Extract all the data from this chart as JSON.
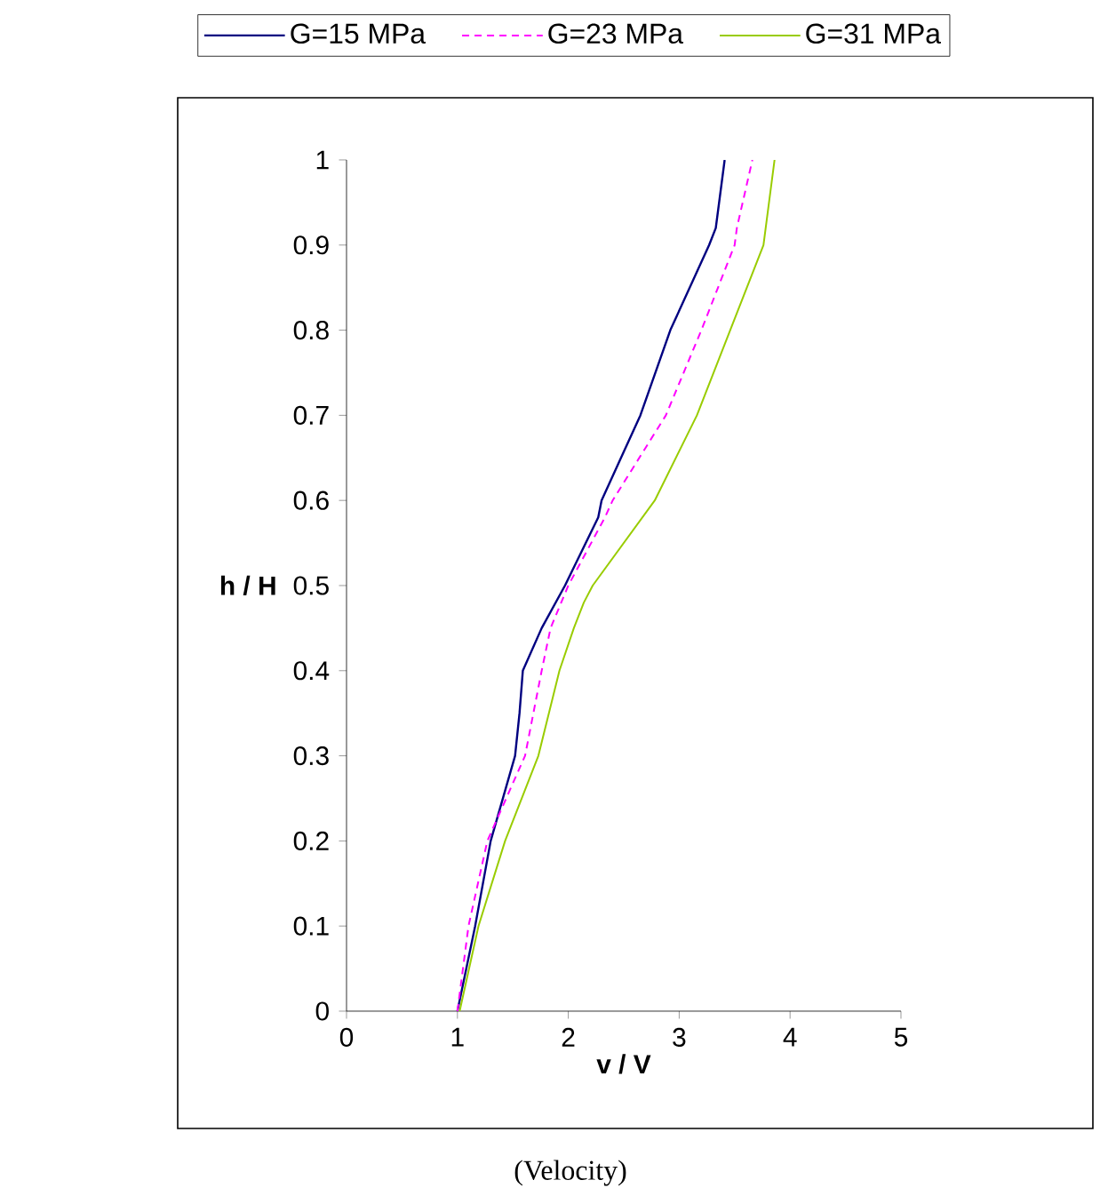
{
  "chart_data": {
    "type": "line",
    "xlabel": "v / V",
    "ylabel": "h / H",
    "annotations": [
      "(Velocity)"
    ],
    "xlim": [
      0,
      5
    ],
    "ylim": [
      0,
      1
    ],
    "xticks": [
      0,
      1,
      2,
      3,
      4,
      5
    ],
    "yticks": [
      0,
      0.1,
      0.2,
      0.3,
      0.4,
      0.5,
      0.6,
      0.7,
      0.8,
      0.9,
      1
    ],
    "grid": false,
    "legend": "top",
    "marker": "none",
    "series": [
      {
        "name": "G=15 MPa",
        "color": "#000080",
        "line_style": "solid",
        "x": [
          1.0,
          1.16,
          1.3,
          1.52,
          1.56,
          1.59,
          1.76,
          1.97,
          2.27,
          2.3,
          2.65,
          2.92,
          3.27,
          3.33,
          3.41
        ],
        "values": [
          0,
          0.1,
          0.2,
          0.3,
          0.35,
          0.4,
          0.45,
          0.5,
          0.58,
          0.6,
          0.7,
          0.8,
          0.9,
          0.92,
          1
        ]
      },
      {
        "name": "G=23 MPa",
        "color": "#ff00ff",
        "line_style": "dashed",
        "x": [
          1.0,
          1.1,
          1.27,
          1.61,
          1.76,
          1.84,
          2.0,
          2.33,
          2.4,
          2.88,
          3.2,
          3.5,
          3.52,
          3.66
        ],
        "values": [
          0,
          0.1,
          0.2,
          0.3,
          0.4,
          0.45,
          0.5,
          0.58,
          0.6,
          0.7,
          0.8,
          0.9,
          0.92,
          1
        ]
      },
      {
        "name": "G=31 MPa",
        "color": "#99cc00",
        "line_style": "solid",
        "x": [
          1.02,
          1.19,
          1.43,
          1.73,
          1.92,
          2.05,
          2.14,
          2.22,
          2.78,
          3.16,
          3.46,
          3.76,
          3.86
        ],
        "values": [
          0,
          0.1,
          0.2,
          0.3,
          0.4,
          0.45,
          0.48,
          0.5,
          0.6,
          0.7,
          0.8,
          0.9,
          1
        ]
      }
    ]
  }
}
